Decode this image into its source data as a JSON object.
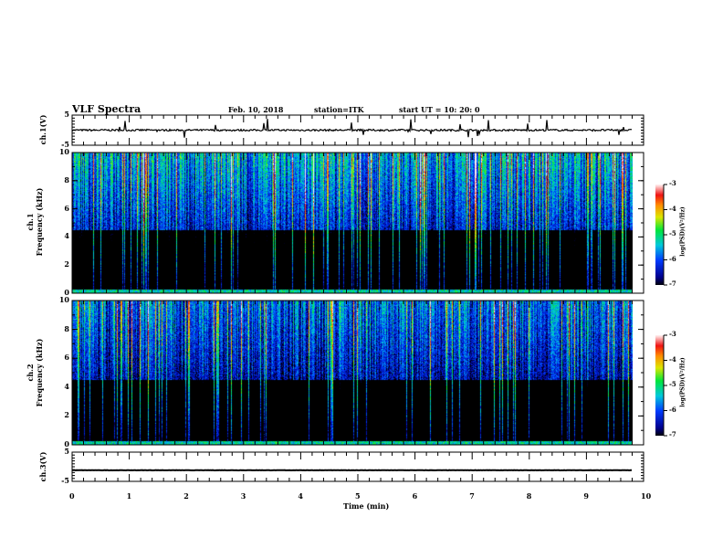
{
  "header": {
    "title": "VLF Spectra",
    "date": "Feb. 10, 2018",
    "station": "station=ITK",
    "start": "start  UT =   10: 20: 0"
  },
  "chart_data": {
    "type": "heatmap",
    "title": "VLF Spectra",
    "xlabel": "Time  (min)",
    "xlim": [
      0,
      10
    ],
    "xticks": [
      "0",
      "1",
      "2",
      "3",
      "4",
      "5",
      "6",
      "7",
      "8",
      "9",
      "10"
    ],
    "data_end_min": 9.8,
    "panels": [
      {
        "name": "ch1-waveform",
        "type": "line",
        "ylabel": "ch.1(V)",
        "ylim": [
          -5,
          5
        ],
        "yticks": [
          "5",
          "-5"
        ],
        "baseline": 0
      },
      {
        "name": "ch1-spectrogram",
        "type": "heatmap",
        "ylabel_line1": "ch.1",
        "ylabel_line2": "Frequency  (kHz)",
        "ylim": [
          0,
          10
        ],
        "yticks": [
          "0",
          "2",
          "4",
          "6",
          "8",
          "10"
        ]
      },
      {
        "name": "ch2-spectrogram",
        "type": "heatmap",
        "ylabel_line1": "ch.2",
        "ylabel_line2": "Frequency  (kHz)",
        "ylim": [
          0,
          10
        ],
        "yticks": [
          "0",
          "2",
          "4",
          "6",
          "8",
          "10"
        ]
      },
      {
        "name": "ch3-waveform",
        "type": "line",
        "ylabel": "ch.3(V)",
        "ylim": [
          -5,
          5
        ],
        "yticks": [
          "5",
          "-5"
        ],
        "baseline": -1.2
      }
    ],
    "colorbar": {
      "label": "log(PSD)(V²/Hz)",
      "range": [
        -7,
        -3
      ],
      "ticks": [
        "-3",
        "-4",
        "-5",
        "-6",
        "-7"
      ]
    }
  }
}
